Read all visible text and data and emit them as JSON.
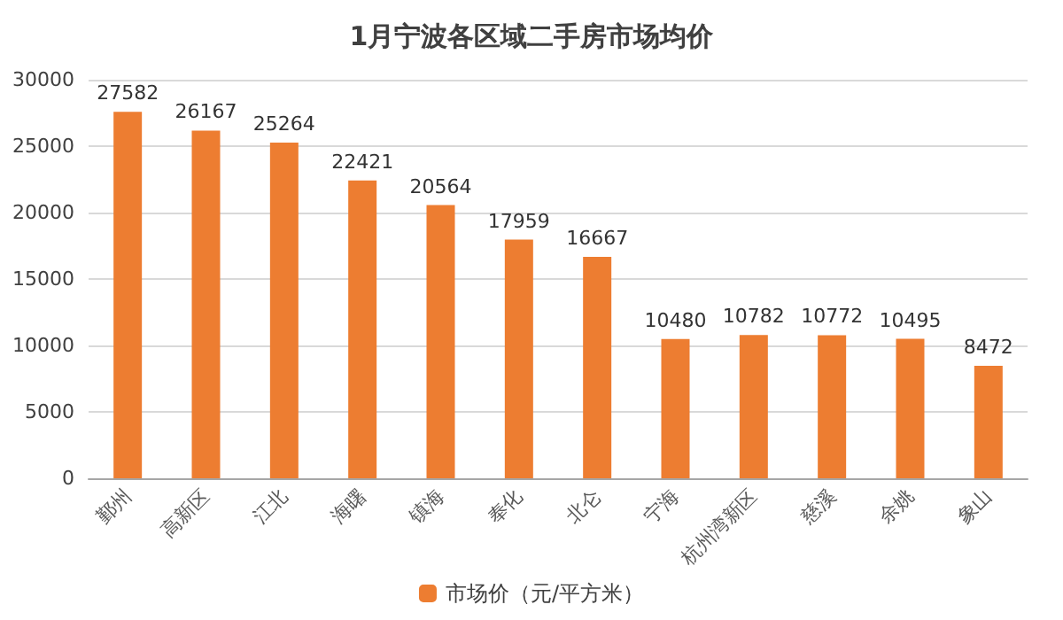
{
  "chart_data": {
    "type": "bar",
    "title": "1月宁波各区域二手房市场均价",
    "categories": [
      "鄞州",
      "高新区",
      "江北",
      "海曙",
      "镇海",
      "奉化",
      "北仑",
      "宁海",
      "杭州湾新区",
      "慈溪",
      "余姚",
      "象山"
    ],
    "series": [
      {
        "name": "市场价（元/平方米）",
        "color": "#ed7d31",
        "values": [
          27582,
          26167,
          25264,
          22421,
          20564,
          17959,
          16667,
          10480,
          10782,
          10772,
          10495,
          8472
        ]
      }
    ],
    "ylim": [
      0,
      30000
    ],
    "yticks": [
      0,
      5000,
      10000,
      15000,
      20000,
      25000,
      30000
    ],
    "grid": "y",
    "legend": "bottom",
    "data_labels": true
  }
}
